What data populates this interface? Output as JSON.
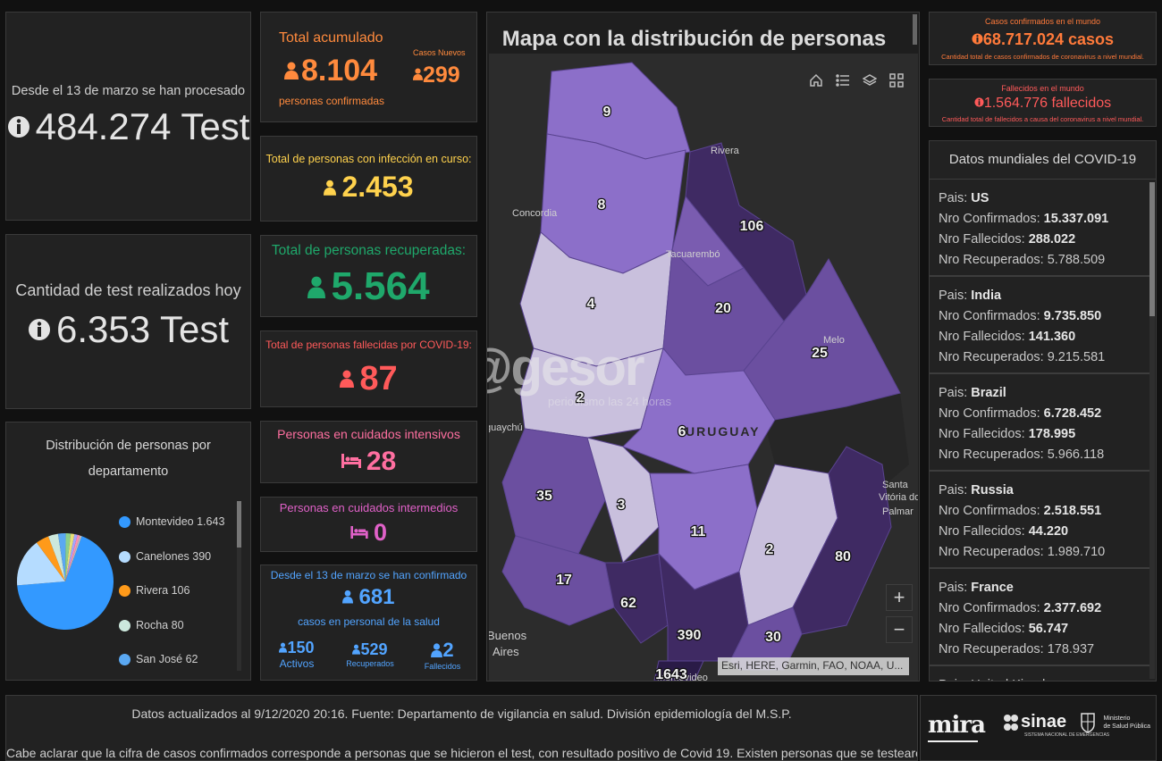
{
  "tests_total": {
    "label": "Desde el 13 de marzo se han procesado",
    "value": "484.274 Test"
  },
  "tests_today": {
    "label": "Cantidad de test realizados hoy",
    "value": "6.353 Test"
  },
  "distribution": {
    "title_line1": "Distribución de personas por",
    "title_line2": "departamento",
    "legend": [
      {
        "name": "Montevideo",
        "value": "1.643",
        "color": "#3399ff"
      },
      {
        "name": "Canelones",
        "value": "390",
        "color": "#b5dcff"
      },
      {
        "name": "Rivera",
        "value": "106",
        "color": "#ff9a1a"
      },
      {
        "name": "Rocha",
        "value": "80",
        "color": "#cce8dd"
      },
      {
        "name": "San José",
        "value": "62",
        "color": "#5aa8f2"
      }
    ],
    "chart_colors": [
      "#3399ff",
      "#b5dcff",
      "#ff9a1a",
      "#cce8dd",
      "#5aa8f2",
      "#8ccf8a",
      "#e8e07a",
      "#a4a4ff",
      "#ff8fb3",
      "#bfbfbf"
    ],
    "chart_values": [
      1643,
      390,
      106,
      80,
      62,
      40,
      30,
      25,
      20,
      15
    ]
  },
  "accumulated": {
    "title": "Total acumulado",
    "value": "8.104",
    "subtitle": "personas confirmadas",
    "new_label": "Casos Nuevos",
    "new_value": "299",
    "color": "#ff8a3d"
  },
  "active": {
    "title": "Total de personas con infección en curso:",
    "value": "2.453",
    "color": "#ffd24d"
  },
  "recovered": {
    "title": "Total de personas recuperadas:",
    "value": "5.564",
    "color": "#1fa86b"
  },
  "deceased": {
    "title": "Total de personas fallecidas por COVID-19:",
    "value": "87",
    "color": "#ff5a5a"
  },
  "icu": {
    "title": "Personas en cuidados intensivos",
    "value": "28",
    "color": "#ff6fa0"
  },
  "intermediate": {
    "title": "Personas en cuidados intermedios",
    "value": "0",
    "color": "#e061c8"
  },
  "health_staff": {
    "title": "Desde el 13 de marzo se han confirmado",
    "value": "681",
    "subtitle": "casos en personal de la salud",
    "color": "#52a4ff",
    "active_value": "150",
    "active_label": "Activos",
    "recovered_value": "529",
    "recovered_label": "Recuperados",
    "deceased_value": "2",
    "deceased_label": "Fallecidos"
  },
  "map": {
    "title": "Mapa con la distribución de personas",
    "attribution": "Esri, HERE, Garmin, FAO, NOAA, U...",
    "zoom_in": "+",
    "zoom_out": "−",
    "country_label": "URUGUAY",
    "cities": {
      "rivera": "Rivera",
      "concordia": "Concordia",
      "tacuarembo": "Tacuarembó",
      "melo": "Melo",
      "guaychu": "guaychú",
      "santa1": "Santa",
      "santa2": "Vitória do",
      "santa3": "Palmar",
      "ba1": "Buenos",
      "ba2": "Aires",
      "montevideo": "Montevideo"
    },
    "departments": {
      "artigas": "9",
      "salto": "8",
      "rivera": "106",
      "paysandu": "4",
      "tacuarembo": "20",
      "cerrolargo": "25",
      "rionegro": "2",
      "durazno": "6",
      "soriano": "35",
      "flores": "3",
      "florida": "11",
      "lavalleja": "2",
      "rocha": "80",
      "colonia": "17",
      "sanjose": "62",
      "canelones": "390",
      "maldonado": "30",
      "montevideo": "1643"
    }
  },
  "watermark": {
    "brand": "@gesor",
    "tagline": "periodismo las 24 horas"
  },
  "world_confirmed": {
    "title": "Casos confirmados en el mundo",
    "value": "68.717.024 casos",
    "subtitle": "Cantidad total de casos confirmados de coronavirus a nivel mundial."
  },
  "world_deceased": {
    "title": "Fallecidos en el mundo",
    "value": "1.564.776 fallecidos",
    "subtitle": "Cantidad total de fallecidos a causa del coronavirus a nivel mundial."
  },
  "world_data": {
    "title": "Datos mundiales del COVID-19",
    "labels": {
      "country": "Pais:",
      "confirmed": "Nro Confirmados:",
      "deceased": "Nro Fallecidos:",
      "recovered": "Nro Recuperados:"
    },
    "countries": [
      {
        "name": "US",
        "confirmed": "15.337.091",
        "deceased": "288.022",
        "recovered": "5.788.509"
      },
      {
        "name": "India",
        "confirmed": "9.735.850",
        "deceased": "141.360",
        "recovered": "9.215.581"
      },
      {
        "name": "Brazil",
        "confirmed": "6.728.452",
        "deceased": "178.995",
        "recovered": "5.966.118"
      },
      {
        "name": "Russia",
        "confirmed": "2.518.551",
        "deceased": "44.220",
        "recovered": "1.989.710"
      },
      {
        "name": "France",
        "confirmed": "2.377.692",
        "deceased": "56.747",
        "recovered": "178.937"
      }
    ],
    "partial_next": "Pais: United Kingdom"
  },
  "footer": {
    "line1": "Datos actualizados al 9/12/2020 20:16. Fuente: Departamento de vigilancia en salud. División epidemiología del M.S.P.",
    "line2": "Cabe aclarar que la cifra de casos confirmados corresponde a personas que se hicieron el test, con resultado positivo de Covid 19. Existen personas que se testearon",
    "logo_mira": "mira",
    "logo_sinae": "sinae",
    "logo_sinae_sub": "SISTEMA NACIONAL DE EMERGENCIAS",
    "logo_msp1": "Ministerio",
    "logo_msp2": "de Salud Pública"
  }
}
